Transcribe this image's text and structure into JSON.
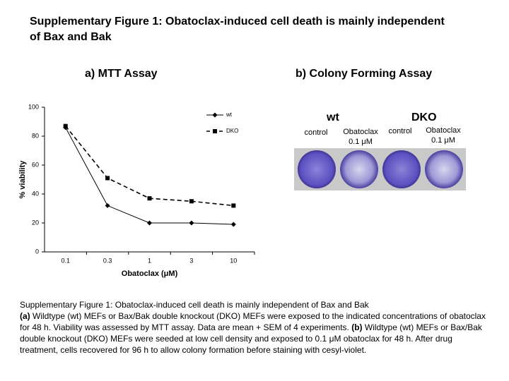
{
  "title": "Supplementary Figure 1: Obatoclax-induced cell death is mainly independent of Bax and Bak",
  "panels": {
    "a": "a) MTT Assay",
    "b": "b) Colony Forming Assay"
  },
  "chart_data": {
    "type": "line",
    "categories": [
      "0.1",
      "0.3",
      "1",
      "3",
      "10"
    ],
    "xlabel": "Obatoclax (μM)",
    "ylabel": "% viability",
    "ylim": [
      0,
      100
    ],
    "yticks": [
      0,
      20,
      40,
      60,
      80,
      100
    ],
    "legend": "top-right",
    "series": [
      {
        "name": "wt",
        "color": "#000000",
        "dash": false,
        "marker": "diamond",
        "values": [
          86,
          32,
          20,
          20,
          19
        ]
      },
      {
        "name": "DKO",
        "color": "#000000",
        "dash": true,
        "marker": "square",
        "values": [
          87,
          51,
          37,
          35,
          32
        ]
      }
    ]
  },
  "colony": {
    "groups": [
      "wt",
      "DKO"
    ],
    "labels": [
      "control",
      "Obatoclax 0.1 μM",
      "control",
      "Obatoclax 0.1 μM"
    ]
  },
  "caption": {
    "title": "Supplementary Figure 1: Obatoclax-induced cell death is mainly independent of Bax and Bak",
    "a_label": "(a)",
    "a_text": "Wildtype (wt) MEFs or Bax/Bak double knockout (DKO) MEFs were exposed to the indicated concentrations of obatoclax for 48 h. Viability was assessed by MTT assay. Data are mean + SEM of 4 experiments.",
    "b_label": "(b)",
    "b_text": "Wildtype (wt) MEFs or Bax/Bak double knockout (DKO) MEFs were seeded at low cell density and exposed to 0.1 μM obatoclax for 48 h. After drug treatment, cells recovered for 96 h to allow colony formation before staining with cesyl-violet."
  }
}
